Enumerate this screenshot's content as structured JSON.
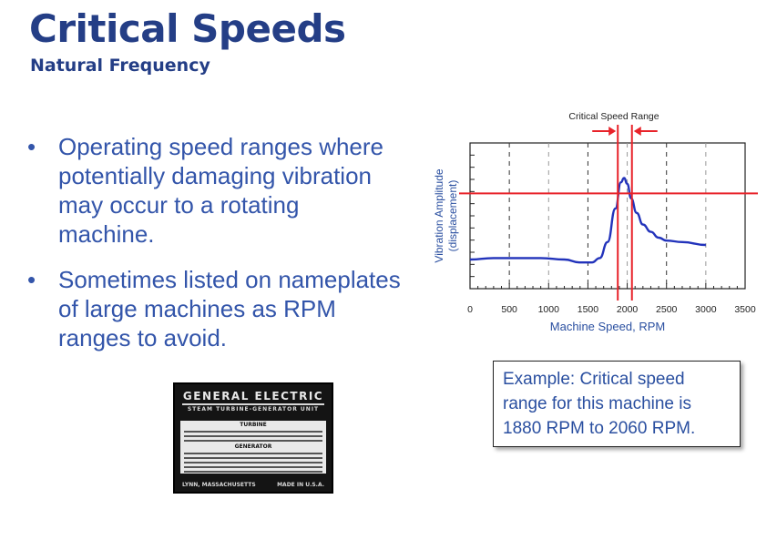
{
  "slide": {
    "title": "Critical Speeds",
    "subtitle": "Natural Frequency",
    "bullets": [
      "Operating speed ranges where potentially damaging vibration may occur to a rotating machine.",
      "Sometimes listed on nameplates of large machines as RPM ranges to avoid."
    ],
    "example_text": "Example: Critical speed range for this machine is 1880 RPM to 2060 RPM."
  },
  "nameplate": {
    "brand": "GENERAL ELECTRIC",
    "unit": "STEAM TURBINE-GENERATOR UNIT",
    "section_turbine": "TURBINE",
    "section_generator": "GENERATOR",
    "location": "LYNN, MASSACHUSETTS",
    "made_in": "MADE IN U.S.A."
  },
  "chart_data": {
    "type": "line",
    "title": "Critical Speed Range",
    "xlabel": "Machine Speed, RPM",
    "ylabel": "Vibration Amplitude (displacement)",
    "xlim": [
      0,
      3500
    ],
    "x_ticks": [
      0,
      500,
      1000,
      1500,
      2000,
      2500,
      3000,
      3500
    ],
    "critical_range": [
      1880,
      2060
    ],
    "series": [
      {
        "color": "#2233bb",
        "x": [
          0,
          300,
          600,
          900,
          1200,
          1400,
          1550,
          1650,
          1750,
          1850,
          1920,
          1960,
          2000,
          2050,
          2120,
          2200,
          2300,
          2400,
          2500,
          2700,
          3000
        ],
        "y": [
          0.2,
          0.21,
          0.21,
          0.21,
          0.2,
          0.18,
          0.18,
          0.21,
          0.32,
          0.55,
          0.73,
          0.76,
          0.72,
          0.62,
          0.52,
          0.44,
          0.39,
          0.35,
          0.33,
          0.32,
          0.3
        ]
      }
    ]
  },
  "colors": {
    "title": "#243e86",
    "bullet_text": "#3355aa",
    "curve": "#2233bb",
    "marker_lines": "#e8232a"
  }
}
